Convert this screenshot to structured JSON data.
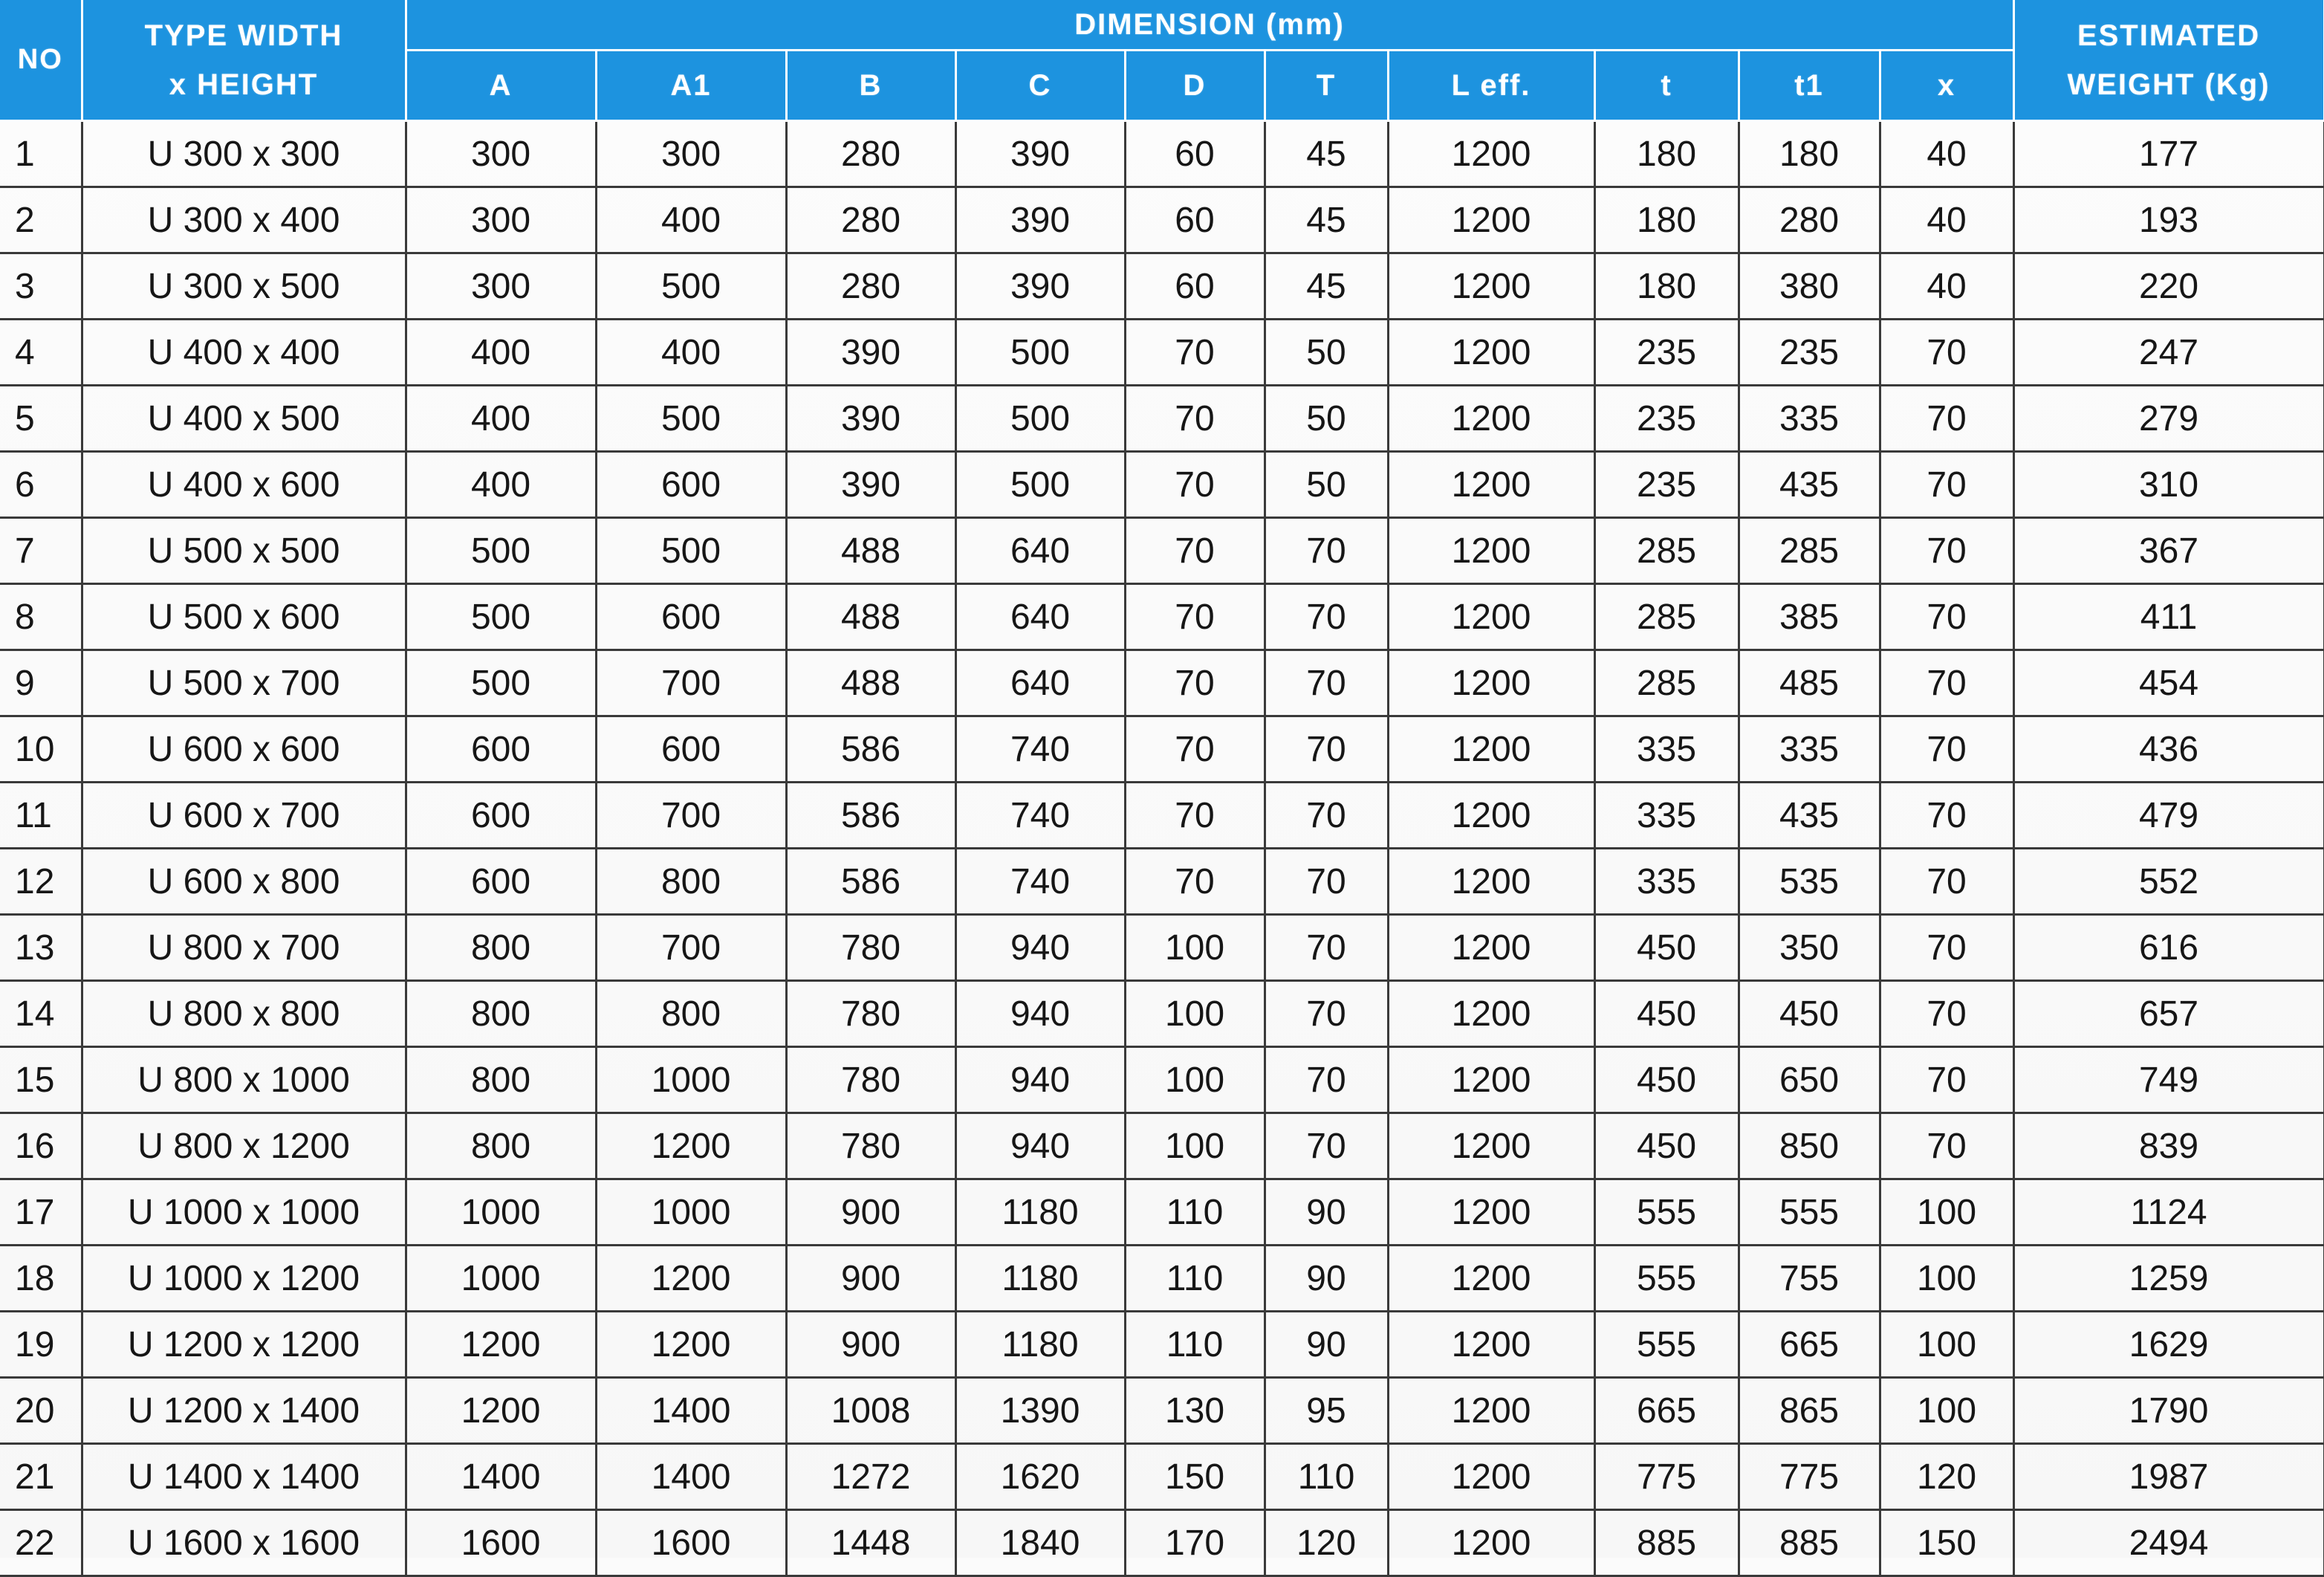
{
  "header": {
    "no": "NO",
    "type_line1": "TYPE WIDTH",
    "type_line2": "x HEIGHT",
    "dimension": "DIMENSION (mm)",
    "weight_line1": "ESTIMATED",
    "weight_line2": "WEIGHT (Kg)",
    "sub": [
      "A",
      "A1",
      "B",
      "C",
      "D",
      "T",
      "L eff.",
      "t",
      "t1",
      "x"
    ]
  },
  "rows": [
    {
      "no": "1",
      "type": "U 300 x 300",
      "A": "300",
      "A1": "300",
      "B": "280",
      "C": "390",
      "D": "60",
      "T": "45",
      "Leff": "1200",
      "t": "180",
      "t1": "180",
      "x": "40",
      "weight": "177"
    },
    {
      "no": "2",
      "type": "U 300 x 400",
      "A": "300",
      "A1": "400",
      "B": "280",
      "C": "390",
      "D": "60",
      "T": "45",
      "Leff": "1200",
      "t": "180",
      "t1": "280",
      "x": "40",
      "weight": "193"
    },
    {
      "no": "3",
      "type": "U 300 x 500",
      "A": "300",
      "A1": "500",
      "B": "280",
      "C": "390",
      "D": "60",
      "T": "45",
      "Leff": "1200",
      "t": "180",
      "t1": "380",
      "x": "40",
      "weight": "220"
    },
    {
      "no": "4",
      "type": "U 400 x 400",
      "A": "400",
      "A1": "400",
      "B": "390",
      "C": "500",
      "D": "70",
      "T": "50",
      "Leff": "1200",
      "t": "235",
      "t1": "235",
      "x": "70",
      "weight": "247"
    },
    {
      "no": "5",
      "type": "U 400 x 500",
      "A": "400",
      "A1": "500",
      "B": "390",
      "C": "500",
      "D": "70",
      "T": "50",
      "Leff": "1200",
      "t": "235",
      "t1": "335",
      "x": "70",
      "weight": "279"
    },
    {
      "no": "6",
      "type": "U 400 x 600",
      "A": "400",
      "A1": "600",
      "B": "390",
      "C": "500",
      "D": "70",
      "T": "50",
      "Leff": "1200",
      "t": "235",
      "t1": "435",
      "x": "70",
      "weight": "310"
    },
    {
      "no": "7",
      "type": "U 500 x 500",
      "A": "500",
      "A1": "500",
      "B": "488",
      "C": "640",
      "D": "70",
      "T": "70",
      "Leff": "1200",
      "t": "285",
      "t1": "285",
      "x": "70",
      "weight": "367"
    },
    {
      "no": "8",
      "type": "U 500 x 600",
      "A": "500",
      "A1": "600",
      "B": "488",
      "C": "640",
      "D": "70",
      "T": "70",
      "Leff": "1200",
      "t": "285",
      "t1": "385",
      "x": "70",
      "weight": "411"
    },
    {
      "no": "9",
      "type": "U 500 x 700",
      "A": "500",
      "A1": "700",
      "B": "488",
      "C": "640",
      "D": "70",
      "T": "70",
      "Leff": "1200",
      "t": "285",
      "t1": "485",
      "x": "70",
      "weight": "454"
    },
    {
      "no": "10",
      "type": "U 600 x 600",
      "A": "600",
      "A1": "600",
      "B": "586",
      "C": "740",
      "D": "70",
      "T": "70",
      "Leff": "1200",
      "t": "335",
      "t1": "335",
      "x": "70",
      "weight": "436"
    },
    {
      "no": "11",
      "type": "U 600 x 700",
      "A": "600",
      "A1": "700",
      "B": "586",
      "C": "740",
      "D": "70",
      "T": "70",
      "Leff": "1200",
      "t": "335",
      "t1": "435",
      "x": "70",
      "weight": "479"
    },
    {
      "no": "12",
      "type": "U 600 x 800",
      "A": "600",
      "A1": "800",
      "B": "586",
      "C": "740",
      "D": "70",
      "T": "70",
      "Leff": "1200",
      "t": "335",
      "t1": "535",
      "x": "70",
      "weight": "552"
    },
    {
      "no": "13",
      "type": "U 800 x 700",
      "A": "800",
      "A1": "700",
      "B": "780",
      "C": "940",
      "D": "100",
      "T": "70",
      "Leff": "1200",
      "t": "450",
      "t1": "350",
      "x": "70",
      "weight": "616"
    },
    {
      "no": "14",
      "type": "U 800 x 800",
      "A": "800",
      "A1": "800",
      "B": "780",
      "C": "940",
      "D": "100",
      "T": "70",
      "Leff": "1200",
      "t": "450",
      "t1": "450",
      "x": "70",
      "weight": "657"
    },
    {
      "no": "15",
      "type": "U 800 x 1000",
      "A": "800",
      "A1": "1000",
      "B": "780",
      "C": "940",
      "D": "100",
      "T": "70",
      "Leff": "1200",
      "t": "450",
      "t1": "650",
      "x": "70",
      "weight": "749"
    },
    {
      "no": "16",
      "type": "U 800 x 1200",
      "A": "800",
      "A1": "1200",
      "B": "780",
      "C": "940",
      "D": "100",
      "T": "70",
      "Leff": "1200",
      "t": "450",
      "t1": "850",
      "x": "70",
      "weight": "839"
    },
    {
      "no": "17",
      "type": "U 1000 x 1000",
      "A": "1000",
      "A1": "1000",
      "B": "900",
      "C": "1180",
      "D": "110",
      "T": "90",
      "Leff": "1200",
      "t": "555",
      "t1": "555",
      "x": "100",
      "weight": "1124"
    },
    {
      "no": "18",
      "type": "U 1000 x 1200",
      "A": "1000",
      "A1": "1200",
      "B": "900",
      "C": "1180",
      "D": "110",
      "T": "90",
      "Leff": "1200",
      "t": "555",
      "t1": "755",
      "x": "100",
      "weight": "1259"
    },
    {
      "no": "19",
      "type": "U 1200 x 1200",
      "A": "1200",
      "A1": "1200",
      "B": "900",
      "C": "1180",
      "D": "110",
      "T": "90",
      "Leff": "1200",
      "t": "555",
      "t1": "665",
      "x": "100",
      "weight": "1629"
    },
    {
      "no": "20",
      "type": "U 1200 x 1400",
      "A": "1200",
      "A1": "1400",
      "B": "1008",
      "C": "1390",
      "D": "130",
      "T": "95",
      "Leff": "1200",
      "t": "665",
      "t1": "865",
      "x": "100",
      "weight": "1790"
    },
    {
      "no": "21",
      "type": "U 1400 x 1400",
      "A": "1400",
      "A1": "1400",
      "B": "1272",
      "C": "1620",
      "D": "150",
      "T": "110",
      "Leff": "1200",
      "t": "775",
      "t1": "775",
      "x": "120",
      "weight": "1987"
    },
    {
      "no": "22",
      "type": "U 1600 x 1600",
      "A": "1600",
      "A1": "1600",
      "B": "1448",
      "C": "1840",
      "D": "170",
      "T": "120",
      "Leff": "1200",
      "t": "885",
      "t1": "885",
      "x": "150",
      "weight": "2494"
    }
  ],
  "colors": {
    "header_bg": "#1d93df",
    "header_text": "#ffffff",
    "grid_line": "#3a3a3a",
    "cell_text": "#161616"
  }
}
